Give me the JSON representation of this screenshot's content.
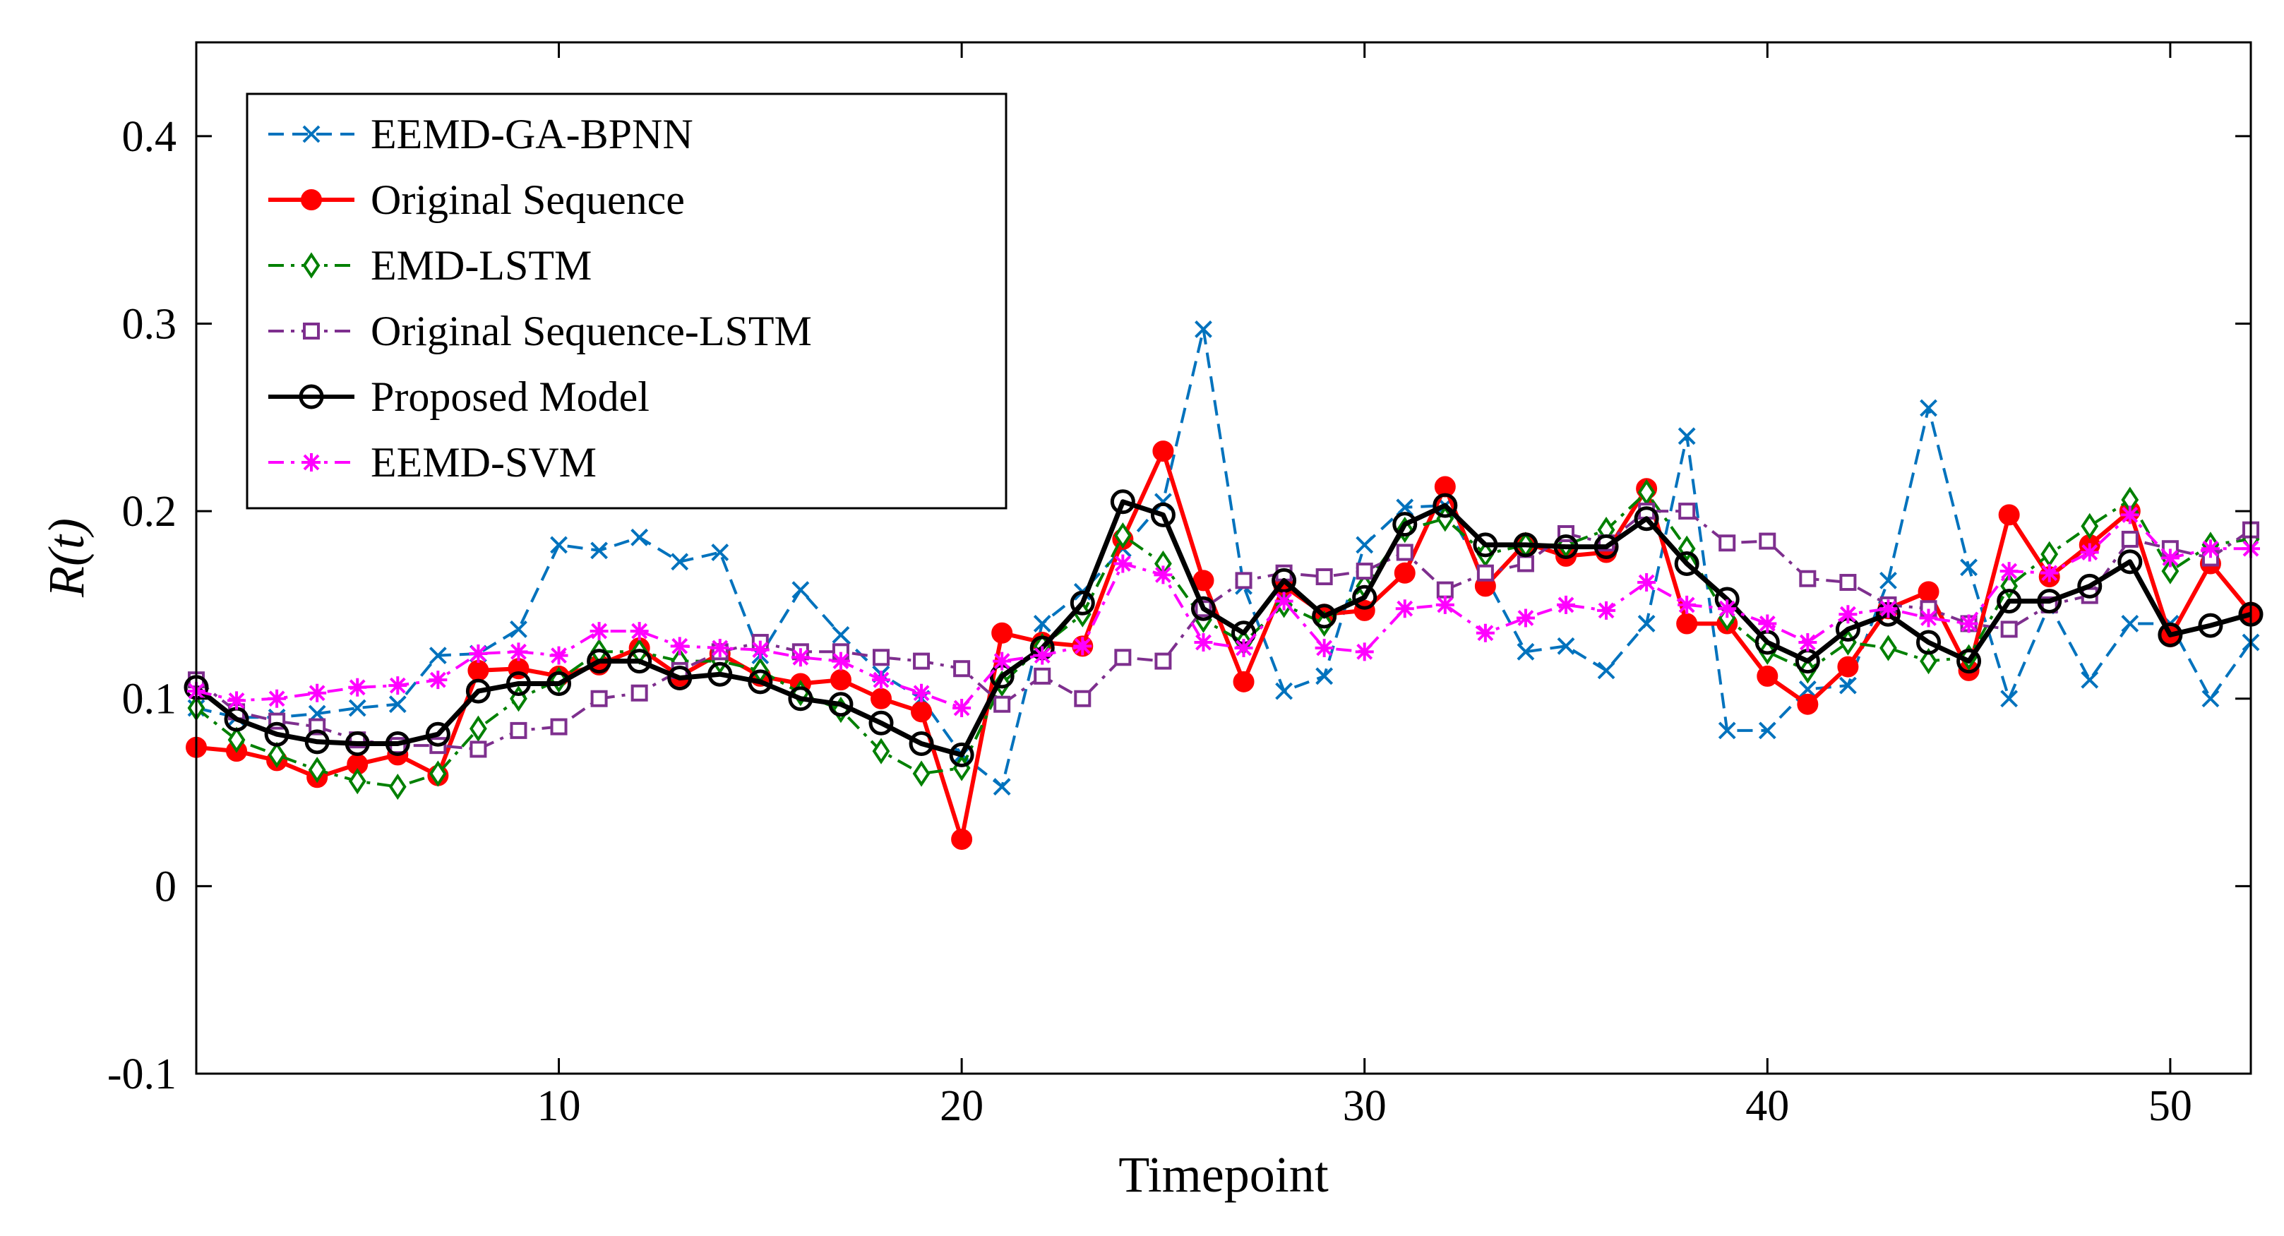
{
  "chart_data": {
    "type": "line",
    "xlabel": "Timepoint",
    "ylabel": "R(t)",
    "xlim": [
      1,
      52
    ],
    "ylim": [
      -0.1,
      0.45
    ],
    "x_ticks": [
      10,
      20,
      30,
      40,
      50
    ],
    "y_ticks": [
      -0.1,
      0,
      0.1,
      0.2,
      0.3,
      0.4
    ],
    "y_tick_labels": [
      "-0.1",
      "0",
      "0.1",
      "0.2",
      "0.3",
      "0.4"
    ],
    "grid": false,
    "legend_position": "top-left",
    "x": [
      1,
      2,
      3,
      4,
      5,
      6,
      7,
      8,
      9,
      10,
      11,
      12,
      13,
      14,
      15,
      16,
      17,
      18,
      19,
      20,
      21,
      22,
      23,
      24,
      25,
      26,
      27,
      28,
      29,
      30,
      31,
      32,
      33,
      34,
      35,
      36,
      37,
      38,
      39,
      40,
      41,
      42,
      43,
      44,
      45,
      46,
      47,
      48,
      49,
      50,
      51,
      52
    ],
    "series": [
      {
        "name": "EEMD-GA-BPNN",
        "color": "#0072BD",
        "line_style": "dashed",
        "marker": "x",
        "values": [
          0.095,
          0.09,
          0.09,
          0.092,
          0.095,
          0.097,
          0.123,
          0.124,
          0.137,
          0.182,
          0.179,
          0.186,
          0.173,
          0.178,
          0.123,
          0.158,
          0.134,
          0.113,
          0.1,
          0.07,
          0.053,
          0.14,
          0.157,
          0.18,
          0.205,
          0.297,
          0.16,
          0.104,
          0.112,
          0.182,
          0.202,
          0.203,
          0.165,
          0.125,
          0.128,
          0.115,
          0.14,
          0.24,
          0.083,
          0.083,
          0.105,
          0.107,
          0.163,
          0.255,
          0.17,
          0.1,
          0.15,
          0.11,
          0.14,
          0.14,
          0.1,
          0.13
        ]
      },
      {
        "name": "Original Sequence",
        "color": "#FF0000",
        "line_style": "solid",
        "marker": "filled-circle",
        "values": [
          0.074,
          0.072,
          0.067,
          0.058,
          0.065,
          0.07,
          0.059,
          0.115,
          0.116,
          0.112,
          0.118,
          0.127,
          0.112,
          0.124,
          0.112,
          0.108,
          0.11,
          0.1,
          0.093,
          0.025,
          0.135,
          0.13,
          0.128,
          0.185,
          0.232,
          0.163,
          0.109,
          0.16,
          0.145,
          0.147,
          0.167,
          0.213,
          0.16,
          0.183,
          0.176,
          0.178,
          0.212,
          0.14,
          0.14,
          0.112,
          0.097,
          0.117,
          0.148,
          0.157,
          0.115,
          0.198,
          0.165,
          0.182,
          0.2,
          0.133,
          0.172,
          0.146
        ]
      },
      {
        "name": "EMD-LSTM",
        "color": "#008000",
        "line_style": "dash-dot",
        "marker": "diamond",
        "values": [
          0.095,
          0.078,
          0.07,
          0.062,
          0.056,
          0.053,
          0.06,
          0.084,
          0.1,
          0.11,
          0.125,
          0.125,
          0.12,
          0.12,
          0.115,
          0.103,
          0.094,
          0.072,
          0.06,
          0.063,
          0.108,
          0.128,
          0.145,
          0.187,
          0.172,
          0.142,
          0.13,
          0.15,
          0.14,
          0.16,
          0.19,
          0.196,
          0.177,
          0.182,
          0.182,
          0.19,
          0.21,
          0.18,
          0.143,
          0.125,
          0.115,
          0.13,
          0.127,
          0.12,
          0.122,
          0.16,
          0.177,
          0.192,
          0.206,
          0.168,
          0.182,
          0.185
        ]
      },
      {
        "name": "Original Sequence-LSTM",
        "color": "#7E2F8E",
        "line_style": "dash-dot",
        "marker": "square",
        "values": [
          0.11,
          0.093,
          0.088,
          0.085,
          0.078,
          0.075,
          0.075,
          0.073,
          0.083,
          0.085,
          0.1,
          0.103,
          0.115,
          0.125,
          0.13,
          0.125,
          0.125,
          0.122,
          0.12,
          0.116,
          0.097,
          0.112,
          0.1,
          0.122,
          0.12,
          0.148,
          0.163,
          0.167,
          0.165,
          0.168,
          0.178,
          0.158,
          0.167,
          0.172,
          0.188,
          0.183,
          0.2,
          0.2,
          0.183,
          0.184,
          0.164,
          0.162,
          0.15,
          0.148,
          0.14,
          0.137,
          0.15,
          0.155,
          0.185,
          0.18,
          0.175,
          0.19
        ]
      },
      {
        "name": "Proposed Model",
        "color": "#000000",
        "line_style": "solid",
        "marker": "open-circle",
        "values": [
          0.106,
          0.089,
          0.081,
          0.077,
          0.076,
          0.076,
          0.081,
          0.104,
          0.108,
          0.108,
          0.12,
          0.12,
          0.111,
          0.113,
          0.109,
          0.1,
          0.097,
          0.087,
          0.076,
          0.07,
          0.112,
          0.127,
          0.151,
          0.205,
          0.198,
          0.148,
          0.135,
          0.163,
          0.144,
          0.154,
          0.193,
          0.203,
          0.182,
          0.182,
          0.181,
          0.181,
          0.196,
          0.172,
          0.153,
          0.13,
          0.12,
          0.137,
          0.145,
          0.13,
          0.12,
          0.152,
          0.152,
          0.16,
          0.173,
          0.134,
          0.139,
          0.145
        ]
      },
      {
        "name": "EEMD-SVM",
        "color": "#FF00FF",
        "line_style": "dash-dot",
        "marker": "asterisk",
        "values": [
          0.104,
          0.099,
          0.1,
          0.103,
          0.106,
          0.107,
          0.11,
          0.124,
          0.125,
          0.123,
          0.136,
          0.136,
          0.128,
          0.127,
          0.126,
          0.122,
          0.12,
          0.11,
          0.103,
          0.095,
          0.12,
          0.123,
          0.128,
          0.172,
          0.166,
          0.13,
          0.127,
          0.152,
          0.127,
          0.125,
          0.148,
          0.15,
          0.135,
          0.143,
          0.15,
          0.147,
          0.162,
          0.15,
          0.148,
          0.14,
          0.13,
          0.145,
          0.148,
          0.143,
          0.14,
          0.168,
          0.167,
          0.178,
          0.198,
          0.175,
          0.18,
          0.18
        ]
      }
    ]
  }
}
